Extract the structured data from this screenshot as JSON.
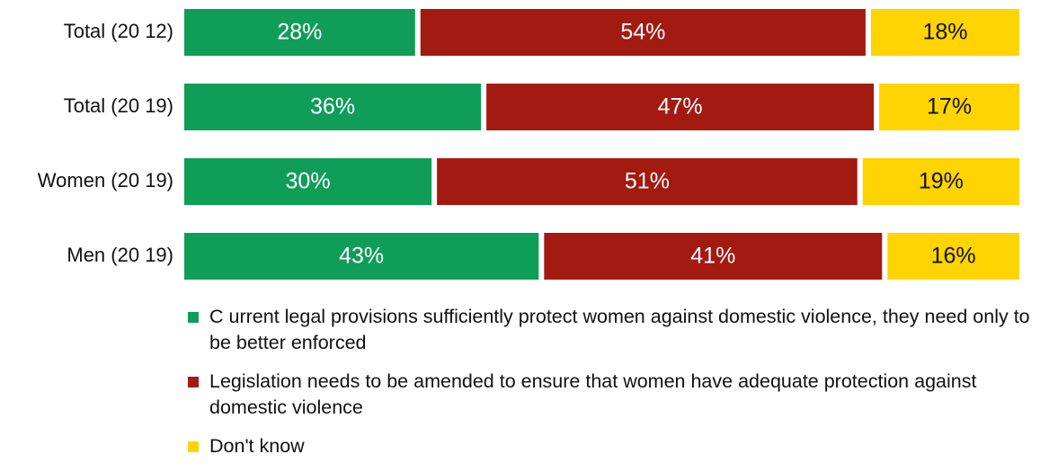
{
  "chart_data": {
    "type": "bar",
    "orientation": "horizontal",
    "stacked": true,
    "percent_stacked": true,
    "categories": [
      "Total (20 12)",
      "Total (20 19)",
      "Women (20 19)",
      "Men  (20 19)"
    ],
    "series": [
      {
        "name": "C urrent legal provisions sufficiently protect women against domestic violence, they need only to be better enforced",
        "color": "#0f9d58",
        "values": [
          28,
          36,
          30,
          43
        ],
        "labels": [
          "28%",
          "36%",
          "30%",
          "43%"
        ]
      },
      {
        "name": "Legislation needs to be amended to ensure that women have adequate protection against domestic violence",
        "color": "#a31a11",
        "values": [
          54,
          47,
          51,
          41
        ],
        "labels": [
          "54%",
          "47%",
          "51%",
          "41%"
        ]
      },
      {
        "name": "Don't know",
        "color": "#ffd400",
        "values": [
          18,
          17,
          19,
          16
        ],
        "labels": [
          "18%",
          "17%",
          "19%",
          "16%"
        ]
      }
    ],
    "xlim": [
      0,
      100
    ],
    "grid": false,
    "legend_position": "bottom"
  },
  "colors": {
    "bar_label_on_dark": "#ffffff",
    "bar_label_on_light": "#111111"
  }
}
